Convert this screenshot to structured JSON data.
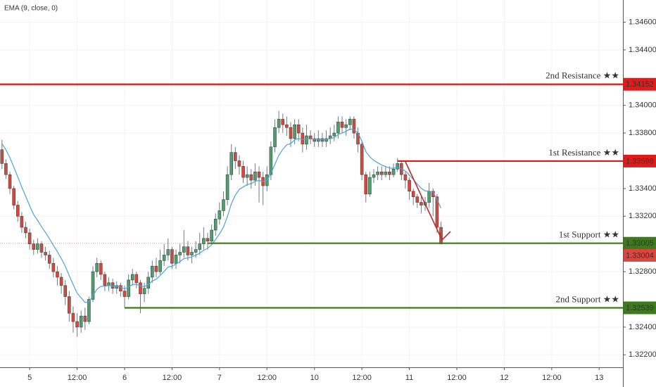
{
  "chart_data": {
    "type": "candlestick",
    "indicator_label": "EMA (9, close, 0)",
    "up_color": "#4f9e6e",
    "down_color": "#d9463e",
    "xlim": [
      -0.5,
      157
    ],
    "ylim": [
      1.3211,
      1.3476
    ],
    "yticks": [
      {
        "value": 1.346,
        "label": "1.34600"
      },
      {
        "value": 1.344,
        "label": "1.34400"
      },
      {
        "value": 1.34,
        "label": "1.34000"
      },
      {
        "value": 1.338,
        "label": "1.33800"
      },
      {
        "value": 1.334,
        "label": "1.33400"
      },
      {
        "value": 1.332,
        "label": "1.33200"
      },
      {
        "value": 1.328,
        "label": "1.32800"
      },
      {
        "value": 1.324,
        "label": "1.32400"
      },
      {
        "value": 1.322,
        "label": "1.32200"
      }
    ],
    "xticks": [
      {
        "value": 7,
        "label": "5"
      },
      {
        "value": 19,
        "label": "12:00"
      },
      {
        "value": 31,
        "label": "6"
      },
      {
        "value": 43,
        "label": "12:00"
      },
      {
        "value": 55,
        "label": "7"
      },
      {
        "value": 67,
        "label": "12:00"
      },
      {
        "value": 79,
        "label": "10"
      },
      {
        "value": 91,
        "label": "12:00"
      },
      {
        "value": 103,
        "label": "11"
      },
      {
        "value": 115,
        "label": "12:00"
      },
      {
        "value": 127,
        "label": "12"
      },
      {
        "value": 139,
        "label": "12:00"
      },
      {
        "value": 151,
        "label": "13"
      }
    ],
    "levels": [
      {
        "label": "2nd Resistance ★★",
        "value": 1.34152,
        "color": "#e01b1b",
        "from": -0.5
      },
      {
        "label": "1st Resistance ★★",
        "value": 1.33598,
        "color": "#e01b1b",
        "from": 100
      },
      {
        "label": "1st Support ★★",
        "value": 1.33005,
        "color": "#3d7a1c",
        "from": 52
      },
      {
        "label": "2nd Support ★★",
        "value": 1.32539,
        "color": "#3d7a1c",
        "from": 31
      }
    ],
    "last_price": 1.33004,
    "last_color": "#d9463e",
    "ema": {
      "color": "#4da3dc",
      "values": [
        1.33724,
        1.33679,
        1.33623,
        1.33554,
        1.33483,
        1.3341,
        1.33344,
        1.33275,
        1.33212,
        1.3317,
        1.33124,
        1.33083,
        1.33038,
        1.3299,
        1.32944,
        1.32895,
        1.3284,
        1.32772,
        1.32706,
        1.32645,
        1.32612,
        1.32578,
        1.32582,
        1.32626,
        1.32673,
        1.32694,
        1.32695,
        1.327,
        1.32696,
        1.32697,
        1.3269,
        1.32676,
        1.32689,
        1.32707,
        1.3271,
        1.32696,
        1.32693,
        1.32706,
        1.32733,
        1.32746,
        1.32773,
        1.32802,
        1.32834,
        1.32839,
        1.32855,
        1.32872,
        1.32894,
        1.32899,
        1.32907,
        1.32918,
        1.32934,
        1.32955,
        1.32968,
        1.32994,
        1.33031,
        1.33073,
        1.33122,
        1.33198,
        1.3329,
        1.33352,
        1.33394,
        1.33411,
        1.33429,
        1.33435,
        1.33452,
        1.33458,
        1.3345,
        1.3346,
        1.33508,
        1.33574,
        1.33639,
        1.33683,
        1.33715,
        1.33724,
        1.33751,
        1.33761,
        1.33753,
        1.33758,
        1.33758,
        1.33755,
        1.33756,
        1.33753,
        1.33754,
        1.33759,
        1.33767,
        1.3379,
        1.338,
        1.33812,
        1.3383,
        1.33824,
        1.33803,
        1.33742,
        1.33666,
        1.33629,
        1.33603,
        1.33586,
        1.33569,
        1.33559,
        1.33547,
        1.33546,
        1.33553,
        1.33542,
        1.33526,
        1.33497,
        1.33465,
        1.33432,
        1.33402,
        1.33382,
        1.33381,
        1.33373,
        1.33322,
        1.33258
      ]
    },
    "candles": [
      [
        1.3368,
        1.3375,
        1.3354,
        1.3358
      ],
      [
        1.3358,
        1.3361,
        1.3347,
        1.335
      ],
      [
        1.335,
        1.3352,
        1.3336,
        1.334
      ],
      [
        1.334,
        1.3342,
        1.3325,
        1.3328
      ],
      [
        1.3328,
        1.3331,
        1.3316,
        1.332
      ],
      [
        1.332,
        1.3323,
        1.3308,
        1.3312
      ],
      [
        1.3312,
        1.3316,
        1.3304,
        1.3308
      ],
      [
        1.3308,
        1.3311,
        1.3296,
        1.33
      ],
      [
        1.33,
        1.3303,
        1.3292,
        1.3296
      ],
      [
        1.3296,
        1.3304,
        1.3293,
        1.33
      ],
      [
        1.33,
        1.3302,
        1.329,
        1.3294
      ],
      [
        1.3294,
        1.3298,
        1.3288,
        1.3292
      ],
      [
        1.3292,
        1.3295,
        1.3282,
        1.3286
      ],
      [
        1.3286,
        1.329,
        1.3276,
        1.328
      ],
      [
        1.328,
        1.3284,
        1.327,
        1.3276
      ],
      [
        1.3276,
        1.3279,
        1.3264,
        1.327
      ],
      [
        1.327,
        1.3274,
        1.3256,
        1.3262
      ],
      [
        1.3262,
        1.3266,
        1.3244,
        1.325
      ],
      [
        1.325,
        1.3255,
        1.3236,
        1.3244
      ],
      [
        1.3244,
        1.325,
        1.3233,
        1.324
      ],
      [
        1.324,
        1.3252,
        1.3236,
        1.3248
      ],
      [
        1.3248,
        1.3254,
        1.3238,
        1.3244
      ],
      [
        1.3244,
        1.3262,
        1.3242,
        1.326
      ],
      [
        1.326,
        1.3284,
        1.3258,
        1.328
      ],
      [
        1.328,
        1.329,
        1.3276,
        1.3286
      ],
      [
        1.3286,
        1.3288,
        1.3274,
        1.3278
      ],
      [
        1.3278,
        1.328,
        1.3266,
        1.327
      ],
      [
        1.327,
        1.3276,
        1.3266,
        1.3272
      ],
      [
        1.3272,
        1.3275,
        1.3264,
        1.3268
      ],
      [
        1.3268,
        1.3273,
        1.3264,
        1.327
      ],
      [
        1.327,
        1.3272,
        1.3262,
        1.3266
      ],
      [
        1.3266,
        1.327,
        1.3254,
        1.3262
      ],
      [
        1.3262,
        1.3278,
        1.326,
        1.3274
      ],
      [
        1.3274,
        1.3282,
        1.327,
        1.3278
      ],
      [
        1.3278,
        1.328,
        1.3268,
        1.3272
      ],
      [
        1.3272,
        1.3274,
        1.325,
        1.3264
      ],
      [
        1.3264,
        1.3272,
        1.3258,
        1.3268
      ],
      [
        1.3268,
        1.328,
        1.3264,
        1.3276
      ],
      [
        1.3276,
        1.3288,
        1.3272,
        1.3284
      ],
      [
        1.3284,
        1.329,
        1.3276,
        1.328
      ],
      [
        1.328,
        1.3296,
        1.3278,
        1.3288
      ],
      [
        1.3288,
        1.33,
        1.3284,
        1.3292
      ],
      [
        1.3292,
        1.3304,
        1.3288,
        1.3296
      ],
      [
        1.3296,
        1.3298,
        1.3282,
        1.3286
      ],
      [
        1.3286,
        1.3296,
        1.3282,
        1.3292
      ],
      [
        1.3292,
        1.33,
        1.3286,
        1.3294
      ],
      [
        1.3294,
        1.331,
        1.329,
        1.3298
      ],
      [
        1.3298,
        1.3302,
        1.3288,
        1.3292
      ],
      [
        1.3292,
        1.3298,
        1.3286,
        1.3294
      ],
      [
        1.3294,
        1.3302,
        1.329,
        1.3296
      ],
      [
        1.3296,
        1.3308,
        1.3292,
        1.33
      ],
      [
        1.33,
        1.3312,
        1.3296,
        1.3304
      ],
      [
        1.3304,
        1.3308,
        1.3296,
        1.3302
      ],
      [
        1.3302,
        1.3314,
        1.33,
        1.331
      ],
      [
        1.331,
        1.3322,
        1.3306,
        1.3318
      ],
      [
        1.3318,
        1.333,
        1.3314,
        1.3324
      ],
      [
        1.3324,
        1.3338,
        1.332,
        1.3332
      ],
      [
        1.3332,
        1.3356,
        1.3328,
        1.335
      ],
      [
        1.335,
        1.3372,
        1.3346,
        1.3366
      ],
      [
        1.3366,
        1.337,
        1.3354,
        1.336
      ],
      [
        1.336,
        1.3364,
        1.335,
        1.3356
      ],
      [
        1.3356,
        1.336,
        1.3344,
        1.3348
      ],
      [
        1.3348,
        1.3356,
        1.3342,
        1.335
      ],
      [
        1.335,
        1.3354,
        1.334,
        1.3346
      ],
      [
        1.3346,
        1.3358,
        1.3342,
        1.3352
      ],
      [
        1.3352,
        1.3356,
        1.333,
        1.3348
      ],
      [
        1.3348,
        1.3352,
        1.3328,
        1.3342
      ],
      [
        1.3342,
        1.3356,
        1.3338,
        1.335
      ],
      [
        1.335,
        1.3374,
        1.3346,
        1.337
      ],
      [
        1.337,
        1.339,
        1.3366,
        1.3384
      ],
      [
        1.3384,
        1.3396,
        1.338,
        1.339
      ],
      [
        1.339,
        1.3394,
        1.338,
        1.3386
      ],
      [
        1.3386,
        1.3392,
        1.3378,
        1.3384
      ],
      [
        1.3384,
        1.3388,
        1.337,
        1.3376
      ],
      [
        1.3376,
        1.339,
        1.3372,
        1.3386
      ],
      [
        1.3386,
        1.339,
        1.3374,
        1.338
      ],
      [
        1.338,
        1.3384,
        1.3366,
        1.3372
      ],
      [
        1.3372,
        1.3386,
        1.3368,
        1.3378
      ],
      [
        1.3378,
        1.3382,
        1.3372,
        1.3376
      ],
      [
        1.3376,
        1.338,
        1.337,
        1.3374
      ],
      [
        1.3374,
        1.3382,
        1.337,
        1.3376
      ],
      [
        1.3376,
        1.338,
        1.337,
        1.3374
      ],
      [
        1.3374,
        1.3382,
        1.337,
        1.3376
      ],
      [
        1.3376,
        1.3384,
        1.3372,
        1.3378
      ],
      [
        1.3378,
        1.3386,
        1.3374,
        1.338
      ],
      [
        1.338,
        1.3392,
        1.3376,
        1.3388
      ],
      [
        1.3388,
        1.3392,
        1.338,
        1.3384
      ],
      [
        1.3384,
        1.339,
        1.3378,
        1.3386
      ],
      [
        1.3386,
        1.3392,
        1.3382,
        1.339
      ],
      [
        1.339,
        1.3392,
        1.3376,
        1.338
      ],
      [
        1.338,
        1.3384,
        1.3366,
        1.3372
      ],
      [
        1.3372,
        1.3374,
        1.3346,
        1.335
      ],
      [
        1.335,
        1.3352,
        1.333,
        1.3336
      ],
      [
        1.3336,
        1.3352,
        1.3334,
        1.3348
      ],
      [
        1.3348,
        1.3354,
        1.3344,
        1.335
      ],
      [
        1.335,
        1.3356,
        1.3346,
        1.3352
      ],
      [
        1.3352,
        1.3356,
        1.3346,
        1.335
      ],
      [
        1.335,
        1.3356,
        1.3348,
        1.3352
      ],
      [
        1.3352,
        1.3356,
        1.3346,
        1.335
      ],
      [
        1.335,
        1.3358,
        1.3348,
        1.3354
      ],
      [
        1.3354,
        1.3362,
        1.3352,
        1.3358
      ],
      [
        1.3358,
        1.336,
        1.3346,
        1.335
      ],
      [
        1.335,
        1.3352,
        1.334,
        1.3346
      ],
      [
        1.3346,
        1.3348,
        1.3332,
        1.3338
      ],
      [
        1.3338,
        1.334,
        1.3328,
        1.3334
      ],
      [
        1.3334,
        1.3336,
        1.3326,
        1.333
      ],
      [
        1.333,
        1.3334,
        1.3322,
        1.3328
      ],
      [
        1.3328,
        1.3334,
        1.3324,
        1.333
      ],
      [
        1.333,
        1.3344,
        1.3326,
        1.3338
      ],
      [
        1.3338,
        1.334,
        1.332,
        1.3334
      ],
      [
        1.3334,
        1.3336,
        1.3308,
        1.3312
      ],
      [
        1.3312,
        1.3316,
        1.33,
        1.33
      ]
    ]
  }
}
